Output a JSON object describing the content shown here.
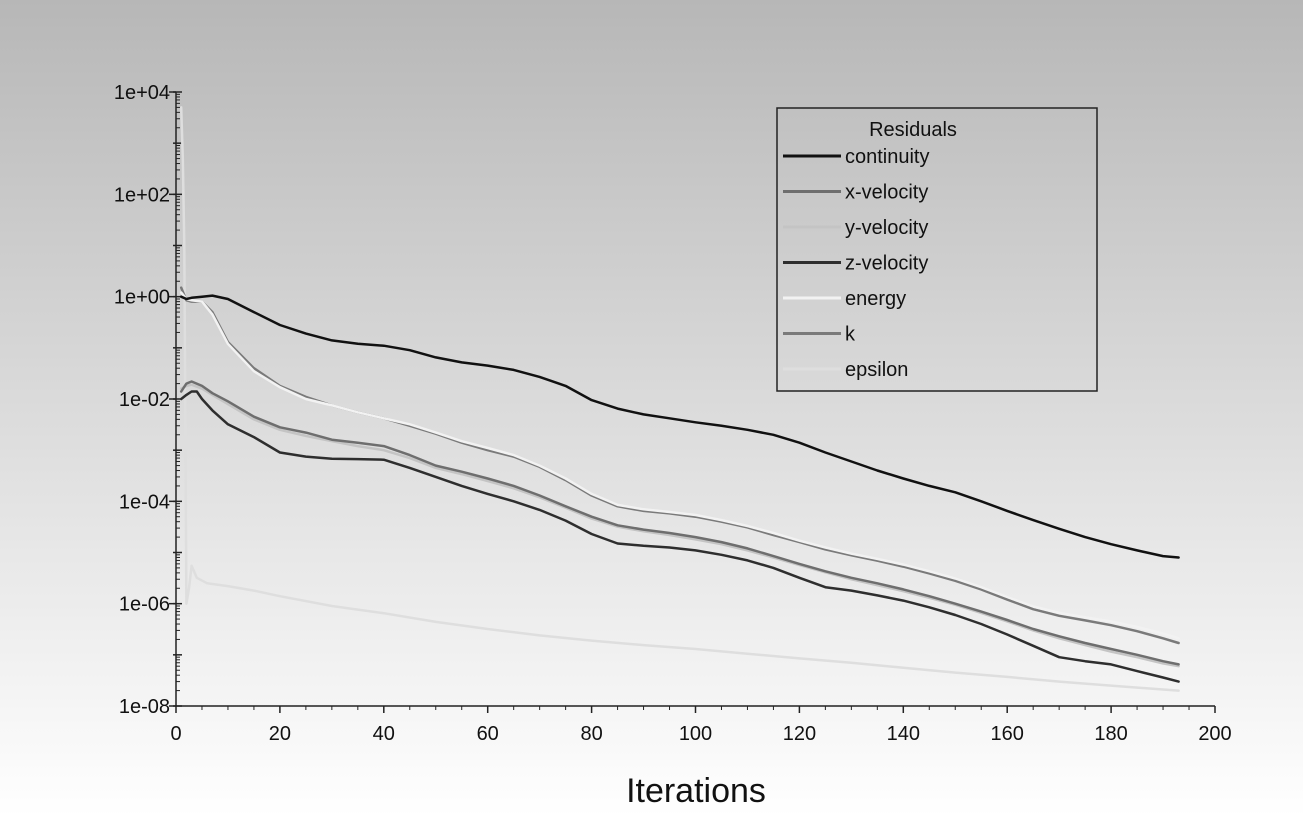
{
  "chart_data": {
    "type": "line",
    "title": "",
    "xlabel": "Iterations",
    "ylabel": "",
    "xlim": [
      0,
      200
    ],
    "ylim": [
      1e-08,
      10000
    ],
    "y_scale": "log",
    "grid": false,
    "x_ticks": [
      0,
      20,
      40,
      60,
      80,
      100,
      120,
      140,
      160,
      180,
      200
    ],
    "x_tick_labels": [
      "0",
      "20",
      "40",
      "60",
      "80",
      "100",
      "120",
      "140",
      "160",
      "180",
      "200"
    ],
    "y_ticks": [
      1e-08,
      1e-06,
      0.0001,
      0.01,
      1,
      100,
      10000
    ],
    "y_tick_labels": [
      "1e-08",
      "1e-06",
      "1e-04",
      "1e-02",
      "1e+00",
      "1e+02",
      "1e+04"
    ],
    "legend": {
      "title": "Residuals",
      "position": "top-right"
    },
    "series": [
      {
        "name": "continuity",
        "color": "#111111",
        "x": [
          1,
          2,
          3,
          5,
          7,
          10,
          15,
          20,
          25,
          30,
          35,
          40,
          45,
          50,
          55,
          60,
          65,
          70,
          75,
          80,
          85,
          90,
          95,
          100,
          105,
          110,
          115,
          120,
          125,
          130,
          135,
          140,
          145,
          150,
          155,
          160,
          165,
          170,
          175,
          180,
          185,
          190,
          193
        ],
        "y": [
          1.0,
          0.9,
          0.95,
          1.0,
          1.05,
          0.9,
          0.5,
          0.28,
          0.19,
          0.14,
          0.12,
          0.11,
          0.09,
          0.065,
          0.052,
          0.045,
          0.037,
          0.027,
          0.018,
          0.0095,
          0.0065,
          0.005,
          0.0042,
          0.0035,
          0.003,
          0.0025,
          0.002,
          0.0014,
          0.0009,
          0.0006,
          0.0004,
          0.00028,
          0.0002,
          0.00015,
          0.0001,
          6.5e-05,
          4.3e-05,
          2.9e-05,
          2e-05,
          1.45e-05,
          1.1e-05,
          8.5e-06,
          8e-06
        ]
      },
      {
        "name": "x-velocity",
        "color": "#6e6e6e",
        "x": [
          1,
          2,
          3,
          5,
          7,
          10,
          15,
          20,
          25,
          30,
          35,
          40,
          45,
          50,
          55,
          60,
          65,
          70,
          75,
          80,
          85,
          90,
          95,
          100,
          105,
          110,
          115,
          120,
          125,
          130,
          135,
          140,
          145,
          150,
          155,
          160,
          165,
          170,
          175,
          180,
          185,
          190,
          193
        ],
        "y": [
          0.014,
          0.02,
          0.022,
          0.018,
          0.013,
          0.009,
          0.0045,
          0.0028,
          0.0022,
          0.0016,
          0.0014,
          0.0012,
          0.0008,
          0.0005,
          0.00038,
          0.00028,
          0.0002,
          0.00013,
          8e-05,
          5e-05,
          3.4e-05,
          2.8e-05,
          2.4e-05,
          2e-05,
          1.6e-05,
          1.2e-05,
          8.5e-06,
          6e-06,
          4.3e-06,
          3.2e-06,
          2.5e-06,
          1.9e-06,
          1.4e-06,
          1e-06,
          7e-07,
          4.8e-07,
          3.2e-07,
          2.3e-07,
          1.7e-07,
          1.3e-07,
          1e-07,
          7.5e-08,
          6.5e-08
        ]
      },
      {
        "name": "y-velocity",
        "color": "#c4c4c4",
        "x": [
          1,
          2,
          3,
          5,
          7,
          10,
          15,
          20,
          25,
          30,
          35,
          40,
          45,
          50,
          55,
          60,
          65,
          70,
          75,
          80,
          85,
          90,
          95,
          100,
          105,
          110,
          115,
          120,
          125,
          130,
          135,
          140,
          145,
          150,
          155,
          160,
          165,
          170,
          175,
          180,
          185,
          190,
          193
        ],
        "y": [
          0.016,
          0.018,
          0.019,
          0.016,
          0.012,
          0.008,
          0.004,
          0.0025,
          0.0019,
          0.0015,
          0.0012,
          0.001,
          0.0007,
          0.00045,
          0.00034,
          0.00025,
          0.00018,
          0.00012,
          7.5e-05,
          4.6e-05,
          3.2e-05,
          2.6e-05,
          2.2e-05,
          1.8e-05,
          1.45e-05,
          1.1e-05,
          8e-06,
          5.7e-06,
          4.1e-06,
          3e-06,
          2.3e-06,
          1.75e-06,
          1.3e-06,
          9.5e-07,
          6.6e-07,
          4.5e-07,
          3e-07,
          2.1e-07,
          1.55e-07,
          1.15e-07,
          9e-08,
          6.8e-08,
          6e-08
        ]
      },
      {
        "name": "z-velocity",
        "color": "#2e2e2e",
        "x": [
          1,
          2,
          3,
          4,
          5,
          7,
          10,
          15,
          20,
          25,
          30,
          35,
          40,
          45,
          50,
          55,
          60,
          65,
          70,
          75,
          80,
          85,
          90,
          95,
          100,
          105,
          110,
          115,
          120,
          125,
          130,
          135,
          140,
          145,
          150,
          155,
          160,
          165,
          170,
          175,
          180,
          185,
          190,
          193
        ],
        "y": [
          0.01,
          0.012,
          0.014,
          0.014,
          0.01,
          0.006,
          0.0032,
          0.0018,
          0.0009,
          0.00075,
          0.00068,
          0.00067,
          0.00065,
          0.00045,
          0.0003,
          0.0002,
          0.00014,
          0.0001,
          6.8e-05,
          4.2e-05,
          2.3e-05,
          1.5e-05,
          1.35e-05,
          1.25e-05,
          1.1e-05,
          9e-06,
          7e-06,
          5e-06,
          3.2e-06,
          2.1e-06,
          1.8e-06,
          1.45e-06,
          1.15e-06,
          8.5e-07,
          6e-07,
          4e-07,
          2.5e-07,
          1.5e-07,
          9e-08,
          7.5e-08,
          6.5e-08,
          4.8e-08,
          3.6e-08,
          3e-08
        ]
      },
      {
        "name": "energy",
        "color": "#f2f2f2",
        "x": [
          1,
          2,
          3,
          5,
          7,
          10,
          15,
          20,
          25,
          30,
          35,
          40,
          45,
          50,
          55,
          60,
          65,
          70,
          75,
          80,
          85,
          90,
          95,
          100,
          105,
          110,
          115,
          120,
          125,
          130,
          135,
          140,
          145,
          150,
          155,
          160,
          165,
          170,
          175,
          180,
          185,
          190,
          193
        ],
        "y": [
          1.2,
          0.9,
          0.85,
          0.8,
          0.45,
          0.12,
          0.035,
          0.017,
          0.01,
          0.0075,
          0.0055,
          0.0042,
          0.0032,
          0.0022,
          0.0015,
          0.0011,
          0.0008,
          0.0005,
          0.00028,
          0.00014,
          8.5e-05,
          7e-05,
          6.2e-05,
          5.4e-05,
          4.3e-05,
          3.3e-05,
          2.4e-05,
          1.7e-05,
          1.25e-05,
          9.5e-06,
          7.5e-06,
          5.8e-06,
          4.3e-06,
          3.1e-06,
          2.1e-06,
          1.35e-06,
          8.8e-07,
          6.6e-07,
          5.4e-07,
          4.5e-07,
          3.5e-07,
          2.6e-07,
          2.1e-07
        ]
      },
      {
        "name": "k",
        "color": "#7a7a7a",
        "x": [
          1,
          2,
          3,
          5,
          7,
          10,
          15,
          20,
          25,
          30,
          35,
          40,
          45,
          50,
          55,
          60,
          65,
          70,
          75,
          80,
          85,
          90,
          95,
          100,
          105,
          110,
          115,
          120,
          125,
          130,
          135,
          140,
          145,
          150,
          155,
          160,
          165,
          170,
          175,
          180,
          185,
          190,
          193
        ],
        "y": [
          1.5,
          0.85,
          0.8,
          0.8,
          0.5,
          0.13,
          0.04,
          0.018,
          0.011,
          0.0075,
          0.0055,
          0.0042,
          0.003,
          0.0021,
          0.0014,
          0.001,
          0.00075,
          0.00047,
          0.00026,
          0.00013,
          8e-05,
          6.5e-05,
          5.8e-05,
          5e-05,
          4e-05,
          3.1e-05,
          2.2e-05,
          1.6e-05,
          1.15e-05,
          8.8e-06,
          6.9e-06,
          5.3e-06,
          3.9e-06,
          2.8e-06,
          1.9e-06,
          1.2e-06,
          7.8e-07,
          5.8e-07,
          4.7e-07,
          3.8e-07,
          2.9e-07,
          2.1e-07,
          1.7e-07
        ]
      },
      {
        "name": "epsilon",
        "color": "#dedede",
        "x": [
          1,
          1.3,
          1.6,
          2,
          2.5,
          3,
          4,
          6,
          10,
          15,
          20,
          30,
          40,
          50,
          60,
          70,
          80,
          90,
          100,
          110,
          120,
          130,
          140,
          150,
          160,
          170,
          180,
          190,
          193
        ],
        "y": [
          5000,
          500,
          10,
          1e-06,
          2e-06,
          5.5e-06,
          3.2e-06,
          2.5e-06,
          2.2e-06,
          1.8e-06,
          1.4e-06,
          9e-07,
          6.5e-07,
          4.4e-07,
          3.2e-07,
          2.4e-07,
          1.9e-07,
          1.55e-07,
          1.3e-07,
          1.05e-07,
          8.5e-08,
          7e-08,
          5.6e-08,
          4.5e-08,
          3.7e-08,
          3e-08,
          2.5e-08,
          2.1e-08,
          2e-08
        ]
      }
    ]
  }
}
